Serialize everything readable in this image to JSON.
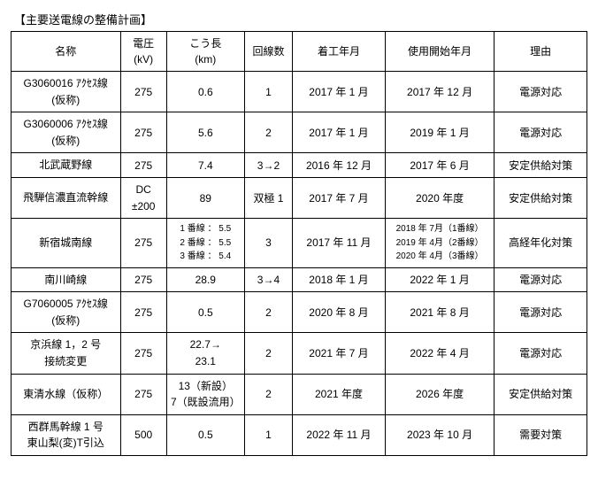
{
  "title": "【主要送電線の整備計画】",
  "headers": {
    "name": {
      "l1": "名称",
      "l2": ""
    },
    "volt": {
      "l1": "電圧",
      "l2": "(kV)"
    },
    "len": {
      "l1": "こう長",
      "l2": "(km)"
    },
    "circ": {
      "l1": "回線数",
      "l2": ""
    },
    "start": {
      "l1": "着工年月",
      "l2": ""
    },
    "use": {
      "l1": "使用開始年月",
      "l2": ""
    },
    "reason": {
      "l1": "理由",
      "l2": ""
    }
  },
  "rows": [
    {
      "name_l1": "G3060016 ｱｸｾｽ線",
      "name_l2": "(仮称)",
      "volt": "275",
      "len": "0.6",
      "circ": "1",
      "start": "2017 年 1 月",
      "use": "2017 年 12 月",
      "reason": "電源対応"
    },
    {
      "name_l1": "G3060006 ｱｸｾｽ線",
      "name_l2": "(仮称)",
      "volt": "275",
      "len": "5.6",
      "circ": "2",
      "start": "2017 年 1 月",
      "use": "2019 年 1 月",
      "reason": "電源対応"
    },
    {
      "name_l1": "北武蔵野線",
      "volt": "275",
      "len": "7.4",
      "circ": "3→2",
      "start": "2016 年 12 月",
      "use": "2017 年 6 月",
      "reason": "安定供給対策"
    },
    {
      "name_l1": "飛騨信濃直流幹線",
      "volt_l1": "DC",
      "volt_l2": "±200",
      "len": "89",
      "circ": "双極 1",
      "start": "2017 年 7 月",
      "use": "2020 年度",
      "reason": "安定供給対策"
    },
    {
      "name_l1": "新宿城南線",
      "volt": "275",
      "len_l1": "1 番線 ： 5.5",
      "len_l2": "2 番線 ： 5.5",
      "len_l3": "3 番線 ： 5.4",
      "circ": "3",
      "start": "2017 年 11 月",
      "use_l1": "2018 年 7月（1番線）",
      "use_l2": "2019 年 4月（2番線）",
      "use_l3": "2020 年 4月（3番線）",
      "reason": "高経年化対策"
    },
    {
      "name_l1": "南川崎線",
      "volt": "275",
      "len": "28.9",
      "circ": "3→4",
      "start": "2018 年 1 月",
      "use": "2022 年 1 月",
      "reason": "電源対応"
    },
    {
      "name_l1": "G7060005 ｱｸｾｽ線",
      "name_l2": "(仮称)",
      "volt": "275",
      "len": "0.5",
      "circ": "2",
      "start": "2020 年 8 月",
      "use": "2021 年 8 月",
      "reason": "電源対応"
    },
    {
      "name_l1": "京浜線 1，2 号",
      "name_l2": "接続変更",
      "volt": "275",
      "len_l1": "22.7→",
      "len_l2": "23.1",
      "circ": "2",
      "start": "2021 年 7 月",
      "use": "2022 年 4 月",
      "reason": "電源対応"
    },
    {
      "name_l1": "東清水線（仮称）",
      "volt": "275",
      "len_l1": "13（新設）",
      "len_l2": "7（既設流用）",
      "circ": "2",
      "start": "2021 年度",
      "use": "2026 年度",
      "reason": "安定供給対策"
    },
    {
      "name_l1": "西群馬幹線 1 号",
      "name_l2": "東山梨(変)T引込",
      "volt": "500",
      "len": "0.5",
      "circ": "1",
      "start": "2022 年 11 月",
      "use": "2023 年 10 月",
      "reason": "需要対策"
    }
  ]
}
